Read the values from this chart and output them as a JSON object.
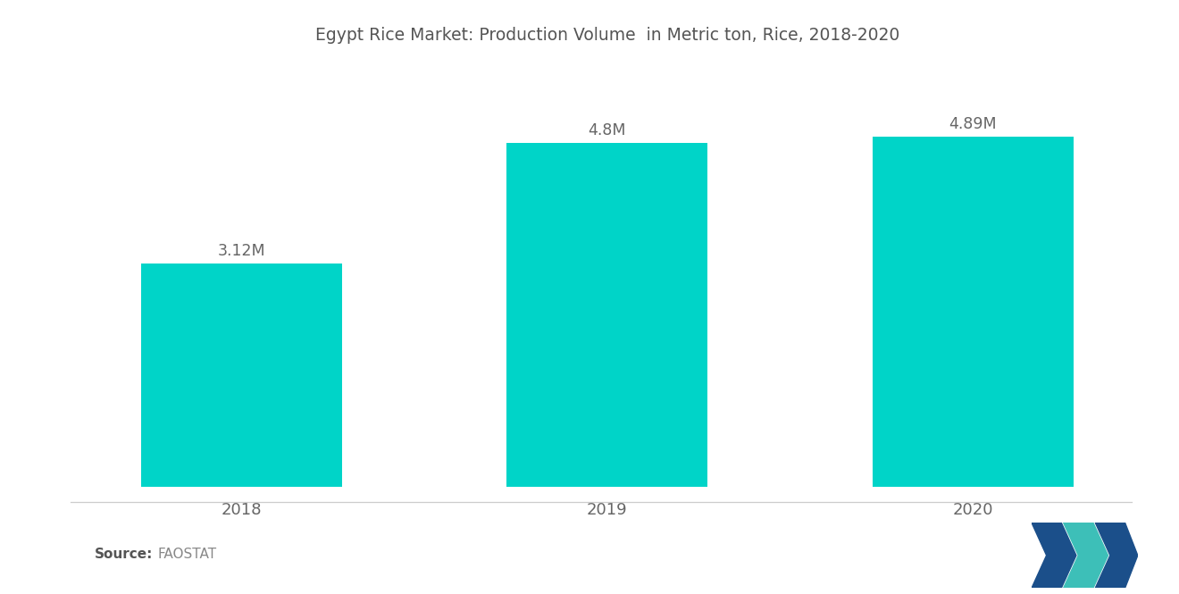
{
  "title": "Egypt Rice Market: Production Volume  in Metric ton, Rice, 2018-2020",
  "categories": [
    "2018",
    "2019",
    "2020"
  ],
  "values": [
    3.12,
    4.8,
    4.89
  ],
  "labels": [
    "3.12M",
    "4.8M",
    "4.89M"
  ],
  "bar_color": "#00D4C8",
  "background_color": "#ffffff",
  "title_color": "#555555",
  "label_color": "#666666",
  "tick_color": "#666666",
  "source_bold": "Source:",
  "source_text": "  FAOSTAT",
  "ylim": [
    0,
    5.8
  ],
  "bar_width": 0.55,
  "title_fontsize": 13.5,
  "label_fontsize": 12.5,
  "tick_fontsize": 13,
  "source_fontsize": 11
}
